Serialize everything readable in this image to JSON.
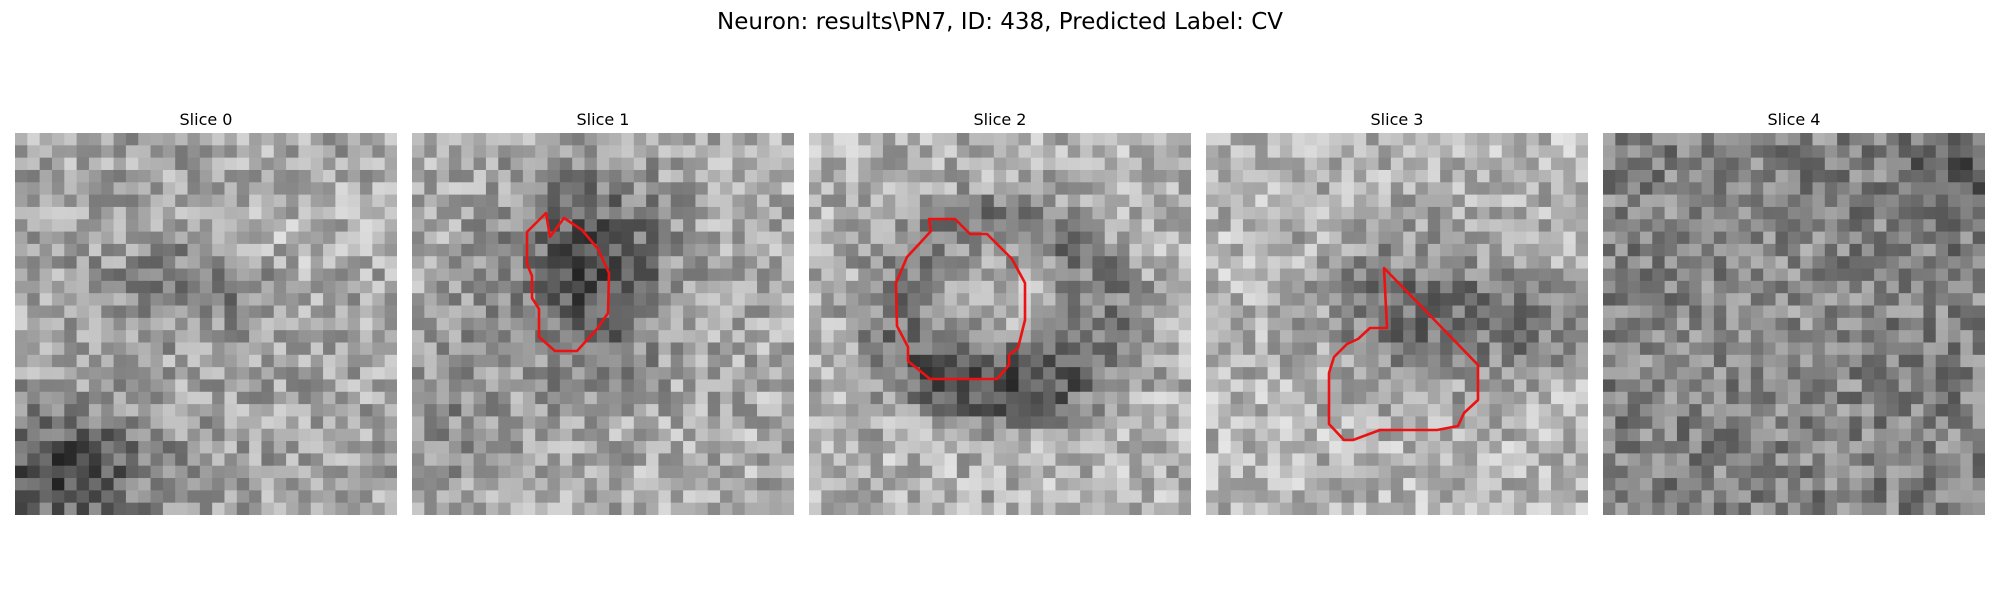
{
  "figure": {
    "title": "Neuron: results\\PN7, ID: 438, Predicted Label: CV"
  },
  "panels": [
    {
      "title": "Slice 0",
      "contour": false
    },
    {
      "title": "Slice 1",
      "contour": true
    },
    {
      "title": "Slice 2",
      "contour": true
    },
    {
      "title": "Slice 3",
      "contour": true
    },
    {
      "title": "Slice 4",
      "contour": false
    }
  ],
  "colors": {
    "contour": "#ee1111",
    "background": "#ffffff",
    "colormap": "grayscale"
  }
}
